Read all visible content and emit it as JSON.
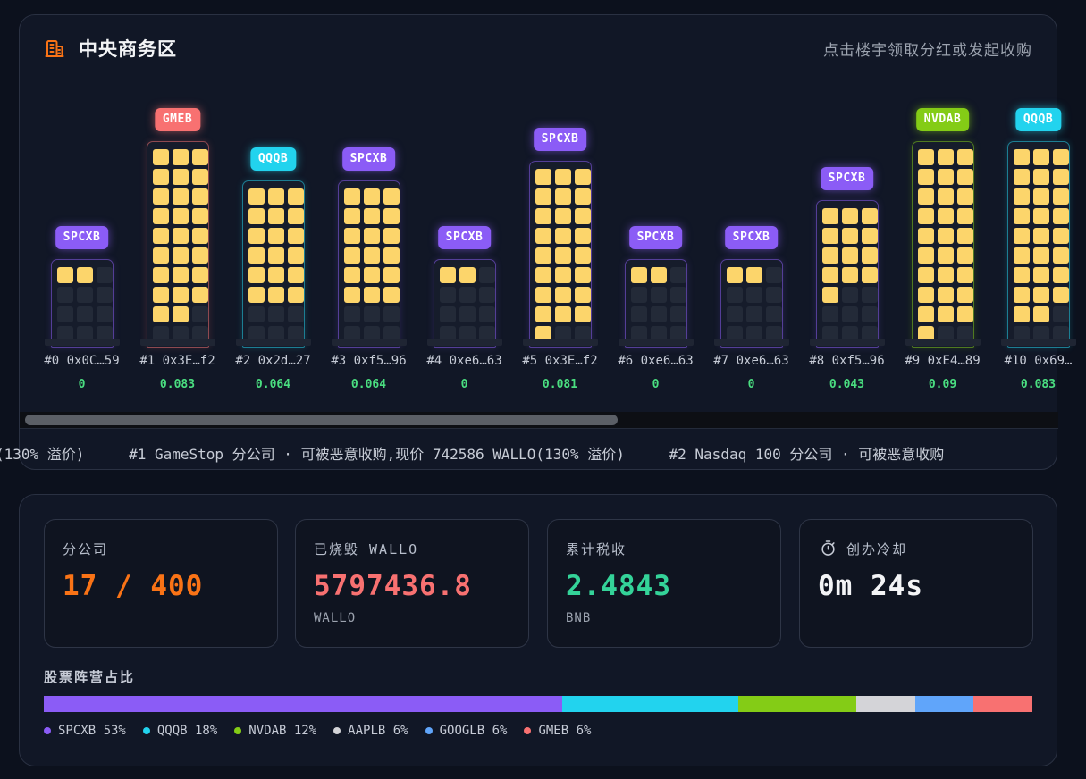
{
  "district": {
    "title": "中央商务区",
    "hint": "点击楼宇领取分红或发起收购",
    "icon": "building-icon"
  },
  "buildings": [
    {
      "tag": "SPCXB",
      "color": "#8b5cf6",
      "floors": 4,
      "lit": 2,
      "address": "#0 0x0C…59",
      "dividend": "0"
    },
    {
      "tag": "GMEB",
      "color": "#f87171",
      "floors": 10,
      "lit": 26,
      "address": "#1 0x3E…f2",
      "dividend": "0.083"
    },
    {
      "tag": "QQQB",
      "color": "#22d3ee",
      "floors": 8,
      "lit": 18,
      "address": "#2 0x2d…27",
      "dividend": "0.064"
    },
    {
      "tag": "SPCXB",
      "color": "#8b5cf6",
      "floors": 8,
      "lit": 18,
      "address": "#3 0xf5…96",
      "dividend": "0.064"
    },
    {
      "tag": "SPCXB",
      "color": "#8b5cf6",
      "floors": 4,
      "lit": 2,
      "address": "#4 0xe6…63",
      "dividend": "0"
    },
    {
      "tag": "SPCXB",
      "color": "#8b5cf6",
      "floors": 9,
      "lit": 25,
      "address": "#5 0x3E…f2",
      "dividend": "0.081"
    },
    {
      "tag": "SPCXB",
      "color": "#8b5cf6",
      "floors": 4,
      "lit": 2,
      "address": "#6 0xe6…63",
      "dividend": "0"
    },
    {
      "tag": "SPCXB",
      "color": "#8b5cf6",
      "floors": 4,
      "lit": 2,
      "address": "#7 0xe6…63",
      "dividend": "0"
    },
    {
      "tag": "SPCXB",
      "color": "#8b5cf6",
      "floors": 7,
      "lit": 13,
      "address": "#8 0xf5…96",
      "dividend": "0.043"
    },
    {
      "tag": "NVDAB",
      "color": "#84cc16",
      "floors": 10,
      "lit": 28,
      "address": "#9 0xE4…89",
      "dividend": "0.09"
    },
    {
      "tag": "QQQB",
      "color": "#22d3ee",
      "floors": 10,
      "lit": 26,
      "address": "#10 0x69…",
      "dividend": "0.083"
    }
  ],
  "ticker": {
    "items": [
      "(130% 溢价)",
      "#1 GameStop 分公司 · 可被恶意收购,现价 742586 WALLO(130% 溢价)",
      "#2 Nasdaq 100 分公司 · 可被恶意收购"
    ]
  },
  "stats": {
    "branches": {
      "label": "分公司",
      "value": "17 / 400",
      "color": "#f97316"
    },
    "burned": {
      "label": "已烧毁 WALLO",
      "value": "5797436.8",
      "unit": "WALLO",
      "color": "#f87171"
    },
    "tax": {
      "label": "累计税收",
      "value": "2.4843",
      "unit": "BNB",
      "color": "#34d399"
    },
    "cooldown": {
      "label": "创办冷却",
      "value": "0m 24s",
      "color": "#f3f4f6",
      "icon": "timer-icon"
    }
  },
  "camps": {
    "title": "股票阵营占比",
    "segments": [
      {
        "label": "SPCXB 53%",
        "percent": 53,
        "color": "#8b5cf6"
      },
      {
        "label": "QQQB 18%",
        "percent": 18,
        "color": "#22d3ee"
      },
      {
        "label": "NVDAB 12%",
        "percent": 12,
        "color": "#84cc16"
      },
      {
        "label": "AAPLB 6%",
        "percent": 6,
        "color": "#d4d4d8"
      },
      {
        "label": "GOOGLB 6%",
        "percent": 6,
        "color": "#60a5fa"
      },
      {
        "label": "GMEB 6%",
        "percent": 6,
        "color": "#f87171"
      }
    ]
  }
}
